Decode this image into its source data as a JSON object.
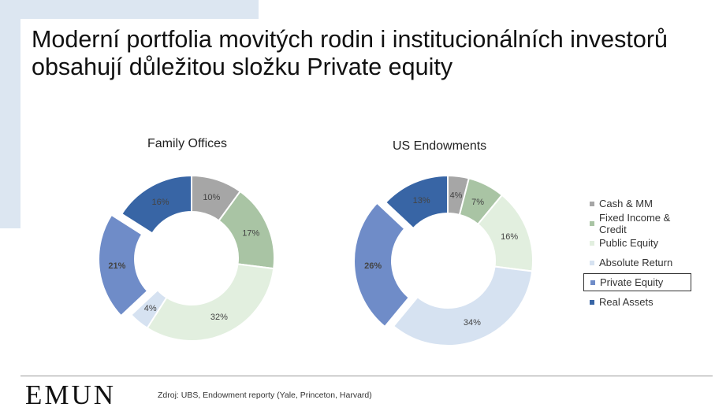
{
  "title_lines": [
    "Moderní portfolia movitých rodin i institucionálních investorů",
    "obsahují důležitou složku Private equity"
  ],
  "legend": [
    {
      "label": "Cash & MM",
      "color": "#a6a6a6"
    },
    {
      "label": "Fixed Income & Credit",
      "color": "#a9c4a4"
    },
    {
      "label": "Public Equity",
      "color": "#e2efdf"
    },
    {
      "label": "Absolute Return",
      "color": "#d6e2f1"
    },
    {
      "label": "Private Equity",
      "color": "#6f8cc8",
      "highlighted": true
    },
    {
      "label": "Real Assets",
      "color": "#3865a5"
    }
  ],
  "chart_data": [
    {
      "type": "pie",
      "title": "Family Offices",
      "categories": [
        "Cash & MM",
        "Fixed Income & Credit",
        "Public Equity",
        "Absolute Return",
        "Private Equity",
        "Real Assets"
      ],
      "values": [
        10,
        17,
        32,
        4,
        21,
        16
      ],
      "labels": [
        "10%",
        "17%",
        "32%",
        "4%",
        "21%",
        "16%"
      ],
      "exploded": [
        "Private Equity"
      ]
    },
    {
      "type": "pie",
      "title": "US Endowments",
      "categories": [
        "Cash & MM",
        "Fixed Income & Credit",
        "Public Equity",
        "Absolute Return",
        "Private Equity",
        "Real Assets"
      ],
      "values": [
        4,
        7,
        16,
        34,
        26,
        13
      ],
      "labels": [
        "4%",
        "7%",
        "16%",
        "34%",
        "26%",
        "13%"
      ],
      "exploded": [
        "Private Equity"
      ]
    }
  ],
  "footer": {
    "logo": "EMUN",
    "source": "Zdroj: UBS, Endowment reporty (Yale, Princeton, Harvard)"
  }
}
